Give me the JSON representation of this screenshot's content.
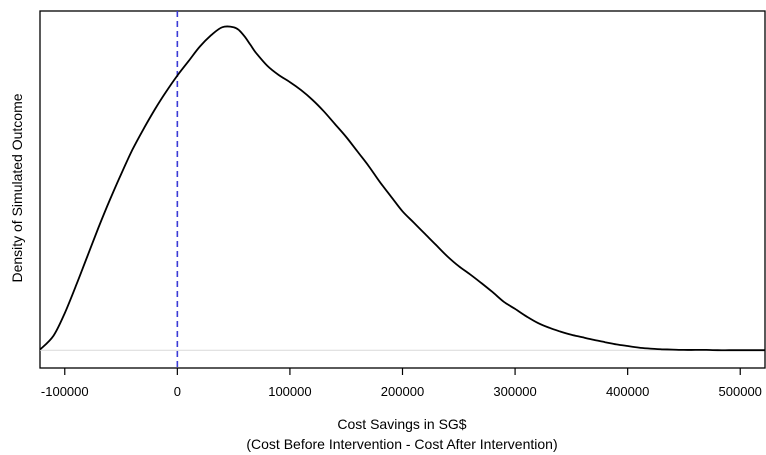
{
  "chart_data": {
    "type": "area",
    "title": "",
    "xlabel": "Cost Savings in SG$",
    "xlabel_line2": "(Cost Before Intervention - Cost After Intervention)",
    "ylabel": "Density of Simulated Outcome",
    "xlim": [
      -122000,
      522000
    ],
    "ylim": [
      -0.055,
      1.05
    ],
    "x_ticks": [
      -100000,
      0,
      100000,
      200000,
      300000,
      400000,
      500000
    ],
    "x_tick_labels": [
      "-100000",
      "0",
      "100000",
      "200000",
      "300000",
      "400000",
      "500000"
    ],
    "y_ticks_shown": false,
    "grid": false,
    "series": [
      {
        "color": "#000000",
        "x": [
          -122000,
          -110000,
          -100000,
          -90000,
          -80000,
          -70000,
          -60000,
          -50000,
          -40000,
          -30000,
          -20000,
          -10000,
          0,
          10000,
          20000,
          30000,
          40000,
          50000,
          55000,
          60000,
          65000,
          70000,
          80000,
          90000,
          100000,
          110000,
          120000,
          130000,
          140000,
          150000,
          160000,
          170000,
          180000,
          190000,
          200000,
          210000,
          220000,
          230000,
          240000,
          250000,
          260000,
          270000,
          280000,
          290000,
          300000,
          310000,
          320000,
          330000,
          340000,
          350000,
          360000,
          370000,
          380000,
          390000,
          400000,
          410000,
          420000,
          430000,
          440000,
          450000,
          460000,
          470000,
          480000,
          490000,
          500000,
          510000,
          522000
        ],
        "y": [
          0.002,
          0.045,
          0.115,
          0.2,
          0.29,
          0.38,
          0.465,
          0.545,
          0.62,
          0.685,
          0.745,
          0.8,
          0.85,
          0.895,
          0.94,
          0.975,
          1.0,
          1.0,
          0.99,
          0.97,
          0.945,
          0.92,
          0.88,
          0.852,
          0.83,
          0.805,
          0.775,
          0.74,
          0.7,
          0.66,
          0.615,
          0.57,
          0.52,
          0.475,
          0.43,
          0.395,
          0.36,
          0.325,
          0.29,
          0.26,
          0.235,
          0.208,
          0.18,
          0.15,
          0.128,
          0.105,
          0.085,
          0.07,
          0.058,
          0.048,
          0.04,
          0.032,
          0.025,
          0.018,
          0.013,
          0.008,
          0.005,
          0.003,
          0.002,
          0.001,
          0.001,
          0.001,
          0.0,
          0.0,
          0.0,
          0.0,
          0.0
        ]
      }
    ],
    "reference_line": {
      "x": 0,
      "style": "dashed",
      "color": "#3b3bd6"
    },
    "baseline_color": "#d9d9d9"
  }
}
